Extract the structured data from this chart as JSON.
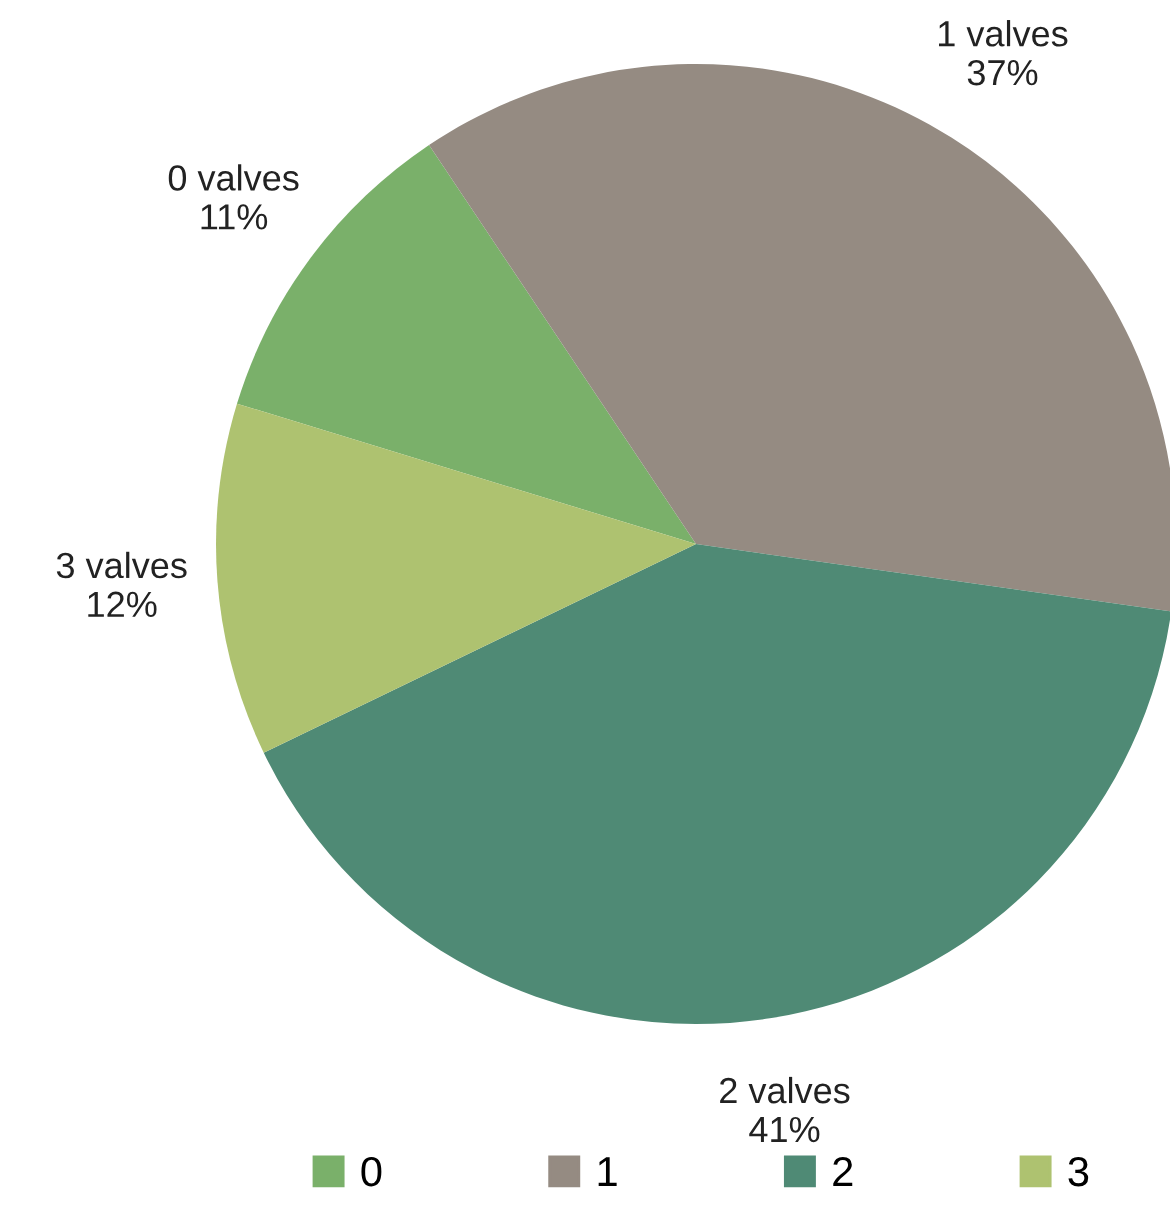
{
  "chart_data": {
    "type": "pie",
    "categories": [
      "0",
      "1",
      "2",
      "3"
    ],
    "values": [
      11,
      37,
      41,
      12
    ],
    "colors": [
      "#7ab06a",
      "#958b82",
      "#4f8a75",
      "#aec270"
    ],
    "value_labels": [
      "0 valves\n11%",
      "1 valves\n37%",
      "2 valves\n41%",
      "3 valves\n12%"
    ],
    "legend": "bottom"
  }
}
